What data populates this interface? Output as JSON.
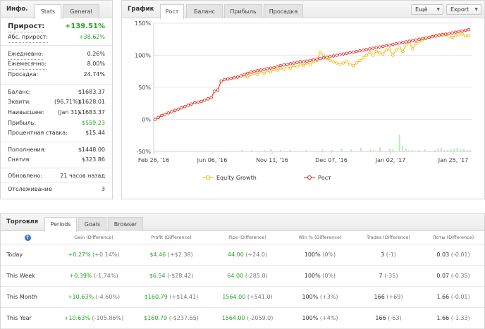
{
  "info": {
    "title": "Инфо.",
    "tabs": [
      "Stats",
      "General"
    ],
    "growth_label": "Прирост:",
    "growth_value": "+139.51%",
    "abs_label": "Абс. прирост:",
    "abs_value": "+38.62%",
    "daily_label": "Ежедневно:",
    "daily_value": "0.26%",
    "monthly_label": "Ежемесячно:",
    "monthly_value": "8.00%",
    "drawdown_label": "Просадка:",
    "drawdown_value": "24.74%",
    "balance_label": "Баланс:",
    "balance_value": "$1683.37",
    "equity_label": "Эквити:",
    "equity_pct": "(96.71%)",
    "equity_value": "$1628.01",
    "highest_label": "Наивысшее:",
    "highest_date": "(Jan 31)",
    "highest_value": "$1683.37",
    "profit_label": "Прибыль:",
    "profit_value": "$559.23",
    "interest_label": "Процентная ставка:",
    "interest_value": "$15.44",
    "deposits_label": "Пополнения:",
    "deposits_value": "$1448.00",
    "withdrawals_label": "Снятия:",
    "withdrawals_value": "$323.86",
    "updated_label": "Обновлено:",
    "updated_value": "21 часов назад",
    "tracking_label": "Отслеживание",
    "tracking_value": "3"
  },
  "graph": {
    "title": "График",
    "tabs": [
      "Рост",
      "Баланс",
      "Прибыль",
      "Просадка"
    ],
    "more_label": "Ещё",
    "export_label": "Export",
    "legend": [
      "Equity Growth",
      "Рост"
    ]
  },
  "chart_data": {
    "type": "line",
    "ylim": [
      -50,
      150
    ],
    "yticks": [
      "150%",
      "100%",
      "50%",
      "0%",
      "-50%"
    ],
    "xticks": [
      "Feb 26, '16",
      "Jun 06, '16",
      "Nov 11, '16",
      "Dec 07, '16",
      "Jan 02, '17",
      "Jan 25, '17"
    ],
    "series": [
      {
        "name": "Рост",
        "color": "#e02020",
        "values": [
          0,
          3,
          6,
          8,
          10,
          12,
          14,
          16,
          18,
          20,
          22,
          24,
          26,
          27,
          28,
          30,
          32,
          34,
          44,
          46,
          60,
          62,
          63,
          64,
          65,
          66,
          68,
          70,
          72,
          74,
          75,
          76,
          77,
          78,
          79,
          80,
          81,
          82,
          84,
          85,
          86,
          87,
          88,
          89,
          90,
          90,
          91,
          92,
          93,
          94,
          95,
          96,
          97,
          98,
          99,
          100,
          101,
          102,
          103,
          104,
          105,
          106,
          107,
          108,
          109,
          110,
          111,
          112,
          113,
          114,
          115,
          116,
          117,
          118,
          119,
          120,
          121,
          122,
          123,
          124,
          125,
          126,
          127,
          128,
          129,
          130,
          131,
          132,
          133,
          134,
          135,
          136,
          137,
          138,
          139,
          140
        ]
      },
      {
        "name": "Equity Growth",
        "color": "#f0b400",
        "values": [
          0,
          3,
          6,
          8,
          10,
          12,
          14,
          16,
          18,
          20,
          22,
          24,
          26,
          27,
          28,
          30,
          32,
          34,
          44,
          46,
          60,
          62,
          63,
          64,
          65,
          66,
          68,
          68,
          66,
          70,
          72,
          70,
          74,
          72,
          76,
          74,
          78,
          76,
          80,
          78,
          82,
          80,
          84,
          82,
          86,
          84,
          88,
          86,
          90,
          92,
          105,
          100,
          95,
          92,
          90,
          88,
          86,
          88,
          90,
          86,
          84,
          88,
          92,
          96,
          100,
          104,
          100,
          106,
          104,
          102,
          108,
          110,
          100,
          108,
          112,
          106,
          116,
          120,
          110,
          118,
          122,
          124,
          126,
          128,
          130,
          131,
          132,
          133,
          132,
          130,
          128,
          131,
          132,
          133,
          130,
          131
        ]
      }
    ],
    "bars": [
      0,
      0,
      0,
      0,
      0,
      0,
      0,
      0,
      0,
      0,
      0,
      0,
      0,
      0,
      0,
      0,
      0,
      0,
      0,
      0,
      1,
      0,
      0,
      0,
      0,
      0,
      0,
      2,
      0,
      0,
      2,
      0,
      0,
      0,
      2,
      0,
      3,
      0,
      0,
      2,
      0,
      0,
      2,
      0,
      0,
      0,
      0,
      2,
      0,
      0,
      0,
      0,
      3,
      0,
      0,
      2,
      0,
      0,
      4,
      0,
      0,
      3,
      0,
      0,
      5,
      0,
      0,
      3,
      2,
      0,
      6,
      0,
      0,
      4,
      3,
      0,
      24,
      8,
      4,
      2,
      2,
      0,
      2,
      0,
      3,
      0,
      0,
      2,
      4,
      5,
      2,
      2,
      3,
      4,
      5,
      3,
      4,
      2,
      2
    ]
  },
  "trading": {
    "title": "Торговля",
    "tabs": [
      "Periods",
      "Goals",
      "Browser"
    ],
    "help": "?",
    "headers": [
      "Gain (Difference)",
      "Profit (Difference)",
      "Pips (Difference)",
      "Win % (Difference)",
      "Trades (Difference)",
      "Лоты (Difference)"
    ],
    "rows": [
      {
        "period": "Today",
        "gain": "+0.27%",
        "gain_diff": "(+0.14%)",
        "profit": "$4.46",
        "profit_diff": "(+$2.38)",
        "pips": "44.00",
        "pips_diff": "(+24.0)",
        "win": "100%",
        "win_diff": "(0%)",
        "trades": "3",
        "trades_diff": "(-1)",
        "lots": "0.03",
        "lots_diff": "(-0.01)"
      },
      {
        "period": "This Week",
        "gain": "+0.39%",
        "gain_diff": "(-1.74%)",
        "profit": "$6.54",
        "profit_diff": "(-$28.42)",
        "pips": "64.00",
        "pips_diff": "(-285.0)",
        "win": "100%",
        "win_diff": "(0%)",
        "trades": "7",
        "trades_diff": "(-35)",
        "lots": "0.07",
        "lots_diff": "(-0.35)"
      },
      {
        "period": "This Month",
        "gain": "+10.63%",
        "gain_diff": "(-4.60%)",
        "profit": "$160.79",
        "profit_diff": "(+$14.41)",
        "pips": "1564.00",
        "pips_diff": "(+541.0)",
        "win": "100%",
        "win_diff": "(+3%)",
        "trades": "166",
        "trades_diff": "(+69)",
        "lots": "1.66",
        "lots_diff": "(-0.01)"
      },
      {
        "period": "This Year",
        "gain": "+10.63%",
        "gain_diff": "(-105.86%)",
        "profit": "$160.79",
        "profit_diff": "(-$237.65)",
        "pips": "1564.00",
        "pips_diff": "(-2059.0)",
        "win": "100%",
        "win_diff": "(+4%)",
        "trades": "166",
        "trades_diff": "(-63)",
        "lots": "1.66",
        "lots_diff": "(-1.33)"
      }
    ]
  }
}
